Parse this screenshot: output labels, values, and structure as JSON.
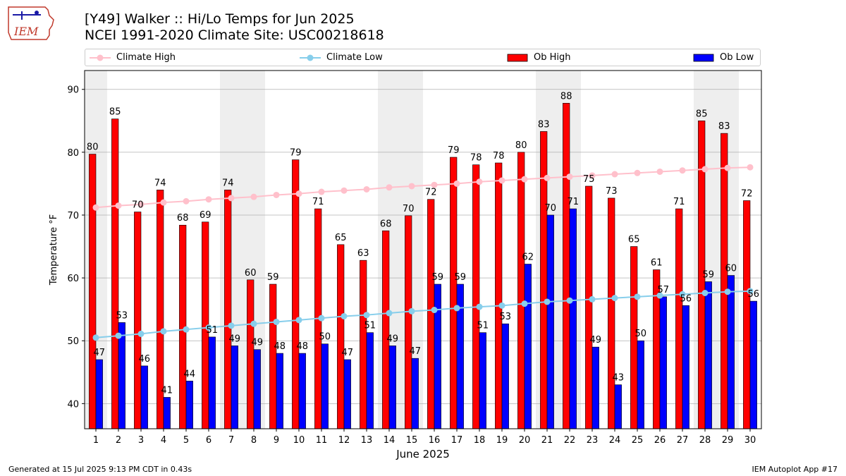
{
  "header": {
    "title_line1": "[Y49] Walker :: Hi/Lo Temps for Jun 2025",
    "title_line2": "NCEI 1991-2020 Climate Site: USC00218618",
    "logo_text": "IEM"
  },
  "legend": {
    "climate_high": "Climate High",
    "climate_low": "Climate Low",
    "ob_high": "Ob High",
    "ob_low": "Ob Low"
  },
  "colors": {
    "ob_high": "#ff0000",
    "ob_low": "#0000ff",
    "climate_high": "#ffc0cb",
    "climate_low": "#87ceeb",
    "weekend_band": "#eeeeee",
    "grid": "#b0b0b0"
  },
  "footer": {
    "generated": "Generated at 15 Jul 2025 9:13 PM CDT in 0.43s",
    "app": "IEM Autoplot App #17"
  },
  "chart_data": {
    "type": "bar",
    "title": "[Y49] Walker :: Hi/Lo Temps for Jun 2025",
    "subtitle": "NCEI 1991-2020 Climate Site: USC00218618",
    "xlabel": "June 2025",
    "ylabel": "Temperature °F",
    "ylim": [
      36,
      93
    ],
    "xlim": [
      0.5,
      30.5
    ],
    "yticks": [
      40,
      50,
      60,
      70,
      80,
      90
    ],
    "grid": "horizontal",
    "legend_position": "top",
    "categories": [
      "1",
      "2",
      "3",
      "4",
      "5",
      "6",
      "7",
      "8",
      "9",
      "10",
      "11",
      "12",
      "13",
      "14",
      "15",
      "16",
      "17",
      "18",
      "19",
      "20",
      "21",
      "22",
      "23",
      "24",
      "25",
      "26",
      "27",
      "28",
      "29",
      "30"
    ],
    "weekend_spans": [
      [
        0.5,
        1.5
      ],
      [
        6.5,
        8.5
      ],
      [
        13.5,
        15.5
      ],
      [
        20.5,
        22.5
      ],
      [
        27.5,
        29.5
      ]
    ],
    "series": [
      {
        "name": "Ob High",
        "kind": "bar",
        "values": [
          79.7,
          85.3,
          70.5,
          74.0,
          68.4,
          68.9,
          74.0,
          59.7,
          59.0,
          78.8,
          71.0,
          65.3,
          62.8,
          67.5,
          69.9,
          72.5,
          79.2,
          78.0,
          78.3,
          80.0,
          83.3,
          87.8,
          74.6,
          72.7,
          65.0,
          61.3,
          71.0,
          85.0,
          83.0,
          72.3
        ],
        "labels": [
          "80",
          "85",
          "70",
          "74",
          "68",
          "69",
          "74",
          "60",
          "59",
          "79",
          "71",
          "65",
          "63",
          "68",
          "70",
          "72",
          "79",
          "78",
          "78",
          "80",
          "83",
          "88",
          "75",
          "73",
          "65",
          "61",
          "71",
          "85",
          "83",
          "72"
        ]
      },
      {
        "name": "Ob Low",
        "kind": "bar",
        "values": [
          47.0,
          52.9,
          46.0,
          41.0,
          43.6,
          50.6,
          49.2,
          48.6,
          48.0,
          48.0,
          49.5,
          47.0,
          51.3,
          49.2,
          47.2,
          59.0,
          59.0,
          51.3,
          52.7,
          62.2,
          70.0,
          71.0,
          49.0,
          43.0,
          50.0,
          57.0,
          55.6,
          59.4,
          60.4,
          56.3
        ],
        "labels": [
          "47",
          "53",
          "46",
          "41",
          "44",
          "51",
          "49",
          "49",
          "48",
          "48",
          "50",
          "47",
          "51",
          "49",
          "47",
          "59",
          "59",
          "51",
          "53",
          "62",
          "70",
          "71",
          "49",
          "43",
          "50",
          "57",
          "56",
          "59",
          "60",
          "56"
        ]
      },
      {
        "name": "Climate High",
        "kind": "line",
        "values": [
          71.2,
          71.5,
          71.7,
          72.0,
          72.2,
          72.5,
          72.7,
          72.9,
          73.2,
          73.4,
          73.7,
          73.9,
          74.1,
          74.4,
          74.6,
          74.8,
          75.0,
          75.3,
          75.5,
          75.7,
          75.9,
          76.1,
          76.3,
          76.5,
          76.7,
          76.9,
          77.1,
          77.3,
          77.5,
          77.6
        ]
      },
      {
        "name": "Climate Low",
        "kind": "line",
        "values": [
          50.5,
          50.8,
          51.1,
          51.5,
          51.8,
          52.1,
          52.4,
          52.7,
          53.0,
          53.3,
          53.6,
          53.9,
          54.1,
          54.4,
          54.7,
          54.9,
          55.2,
          55.4,
          55.6,
          55.9,
          56.2,
          56.4,
          56.6,
          56.8,
          57.0,
          57.2,
          57.4,
          57.6,
          57.8,
          57.9
        ]
      }
    ]
  }
}
